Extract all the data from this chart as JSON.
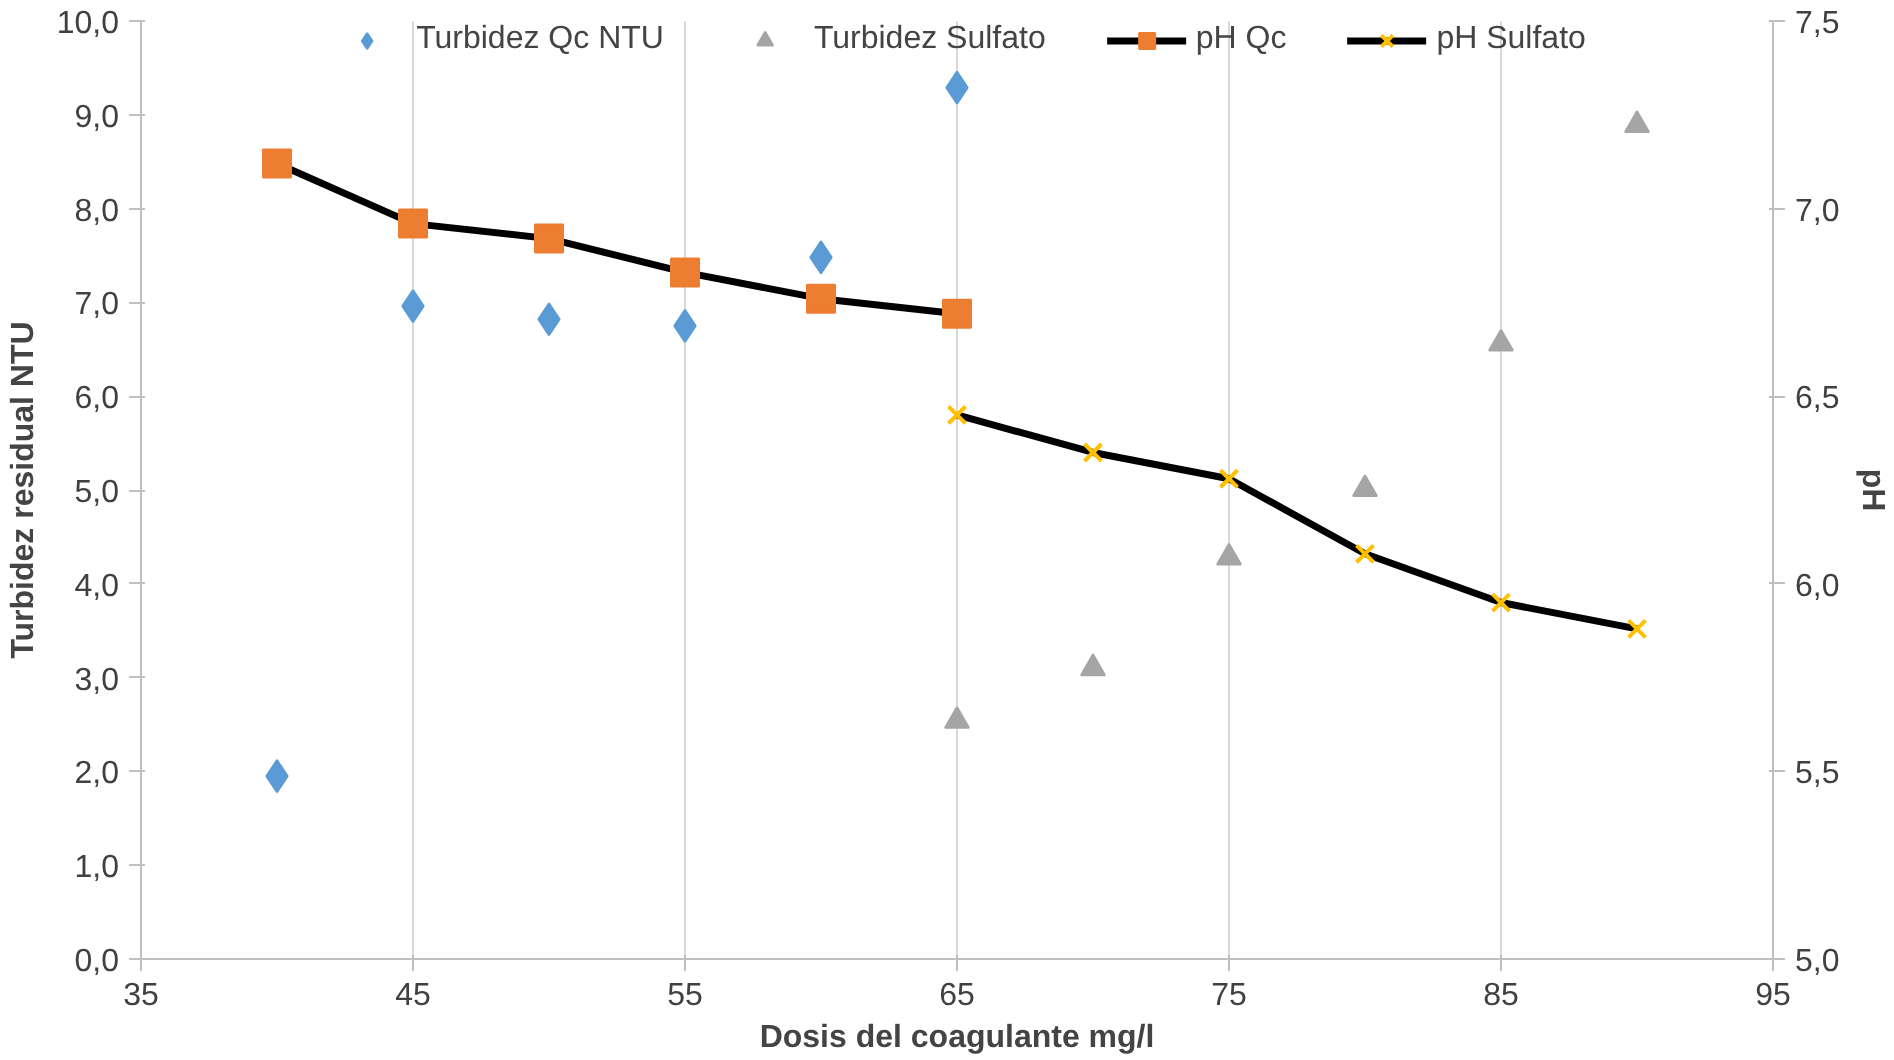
{
  "chart_data": {
    "type": "scatter",
    "xlabel": "Dosis del coagulante mg/l",
    "ylabel": "Turbidez residual NTU",
    "y2label": "pH",
    "xlim": [
      35,
      95
    ],
    "xticks": [
      35,
      45,
      55,
      65,
      75,
      85,
      95
    ],
    "ylim": [
      0,
      10
    ],
    "yticks": [
      {
        "value": 0,
        "label": "0,0"
      },
      {
        "value": 1,
        "label": "1,0"
      },
      {
        "value": 2,
        "label": "2,0"
      },
      {
        "value": 3,
        "label": "3,0"
      },
      {
        "value": 4,
        "label": "4,0"
      },
      {
        "value": 5,
        "label": "5,0"
      },
      {
        "value": 6,
        "label": "6,0"
      },
      {
        "value": 7,
        "label": "7,0"
      },
      {
        "value": 8,
        "label": "8,0"
      },
      {
        "value": 9,
        "label": "9,0"
      },
      {
        "value": 10,
        "label": "10,0"
      }
    ],
    "y2lim": [
      5,
      7.5
    ],
    "y2ticks": [
      {
        "value": 5,
        "label": "5,0"
      },
      {
        "value": 5.5,
        "label": "5,5"
      },
      {
        "value": 6,
        "label": "6,0"
      },
      {
        "value": 6.5,
        "label": "6,5"
      },
      {
        "value": 7,
        "label": "7,0"
      },
      {
        "value": 7.5,
        "label": "7,5"
      }
    ],
    "grid": "x",
    "legend": "top",
    "series": [
      {
        "name": "Turbidez Qc NTU",
        "marker": "diamond",
        "color": "#5b9bd5",
        "x": [
          40,
          45,
          50,
          55,
          60,
          65
        ],
        "values": [
          1.95,
          6.96,
          6.82,
          6.75,
          7.48,
          9.29
        ]
      },
      {
        "name": "Turbidez Sulfato",
        "marker": "triangle",
        "color": "#a5a5a5",
        "x": [
          65,
          70,
          75,
          80,
          85,
          90
        ],
        "values": [
          2.54,
          3.1,
          4.28,
          5.01,
          6.56,
          8.89
        ]
      },
      {
        "name": "pH Qc",
        "type": "line",
        "marker": "square",
        "color": "#ed7d31",
        "axis": "y2",
        "x": [
          40,
          45,
          50,
          55,
          60,
          65
        ],
        "values": [
          7.12,
          6.96,
          6.92,
          6.83,
          6.76,
          6.72
        ]
      },
      {
        "name": "pH Sulfato",
        "type": "line",
        "marker": "x",
        "color": "#ffc000",
        "axis": "y2",
        "x": [
          65,
          70,
          75,
          80,
          85,
          90
        ],
        "values": [
          6.45,
          6.35,
          6.28,
          6.08,
          5.95,
          5.88
        ]
      }
    ]
  }
}
